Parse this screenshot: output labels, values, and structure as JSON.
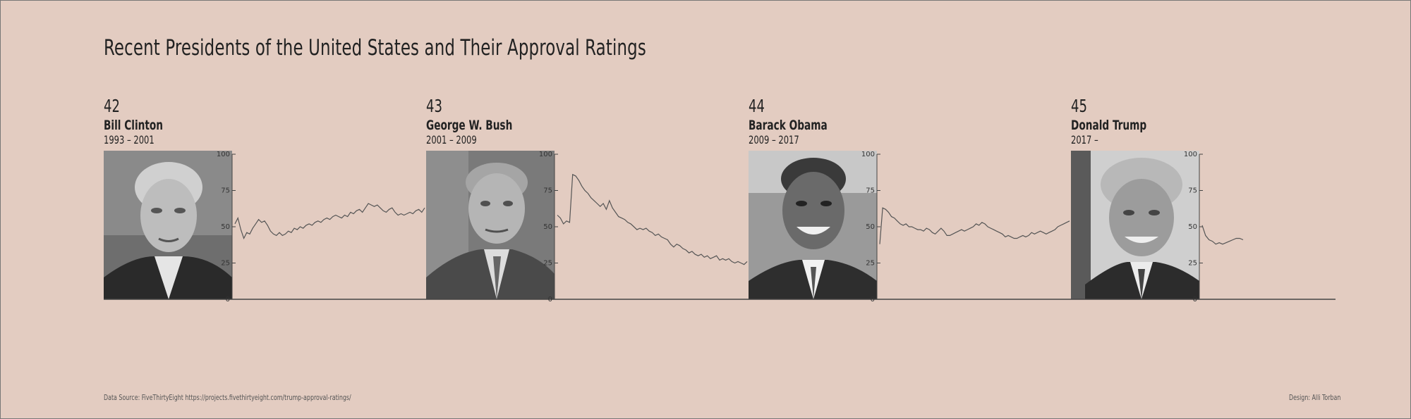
{
  "title": "Recent Presidents of the United States and Their Approval Ratings",
  "presidents": [
    {
      "number": "42",
      "name": "Bill Clinton",
      "term": "1993 – 2001"
    },
    {
      "number": "43",
      "name": "George W. Bush",
      "term": "2001 – 2009"
    },
    {
      "number": "44",
      "name": "Barack Obama",
      "term": "2009 – 2017"
    },
    {
      "number": "45",
      "name": "Donald Trump",
      "term": "2017 –"
    }
  ],
  "source": "Data Source: FiveThirtyEight https://projects.fivethirtyeight.com/trump-approval-ratings/",
  "credit": "Design: Alli Torban",
  "colors": {
    "background": "#e3ccc1",
    "line": "#555555",
    "axis": "#444444"
  },
  "chart_data": {
    "type": "line",
    "title": "Recent Presidents of the United States and Their Approval Ratings",
    "xlabel": "",
    "ylabel": "",
    "ylim": [
      0,
      100
    ],
    "yticks": [
      0,
      25,
      50,
      75,
      100
    ],
    "series": [
      {
        "president": "Bill Clinton",
        "values": [
          52,
          56,
          48,
          42,
          46,
          45,
          49,
          52,
          55,
          53,
          54,
          51,
          47,
          45,
          44,
          46,
          44,
          45,
          47,
          46,
          49,
          48,
          50,
          49,
          51,
          52,
          51,
          53,
          54,
          53,
          55,
          56,
          55,
          57,
          58,
          57,
          56,
          58,
          57,
          60,
          59,
          61,
          62,
          60,
          63,
          66,
          65,
          64,
          65,
          63,
          61,
          60,
          62,
          63,
          60,
          58,
          59,
          58,
          59,
          60,
          59,
          61,
          62,
          60,
          63
        ]
      },
      {
        "president": "George W. Bush",
        "values": [
          58,
          56,
          52,
          54,
          53,
          86,
          85,
          82,
          78,
          75,
          73,
          70,
          68,
          66,
          64,
          66,
          62,
          68,
          63,
          60,
          57,
          56,
          55,
          53,
          52,
          50,
          48,
          49,
          48,
          49,
          47,
          46,
          44,
          45,
          43,
          42,
          41,
          38,
          36,
          38,
          37,
          35,
          34,
          32,
          33,
          31,
          30,
          31,
          29,
          30,
          28,
          29,
          30,
          27,
          28,
          27,
          28,
          26,
          25,
          26,
          25,
          24,
          26
        ]
      },
      {
        "president": "Barack Obama",
        "values": [
          38,
          63,
          62,
          60,
          57,
          56,
          54,
          52,
          51,
          52,
          50,
          50,
          49,
          48,
          48,
          47,
          49,
          48,
          46,
          45,
          47,
          49,
          47,
          44,
          44,
          45,
          46,
          47,
          48,
          47,
          48,
          49,
          50,
          52,
          51,
          53,
          52,
          50,
          49,
          48,
          47,
          46,
          45,
          43,
          44,
          43,
          42,
          42,
          43,
          44,
          43,
          44,
          46,
          45,
          46,
          47,
          46,
          45,
          46,
          47,
          48,
          50,
          51,
          52,
          53,
          54
        ]
      },
      {
        "president": "Donald Trump",
        "values": [
          51,
          44,
          41,
          40,
          38,
          39,
          38,
          39,
          40,
          41,
          42,
          42,
          41
        ]
      }
    ]
  }
}
